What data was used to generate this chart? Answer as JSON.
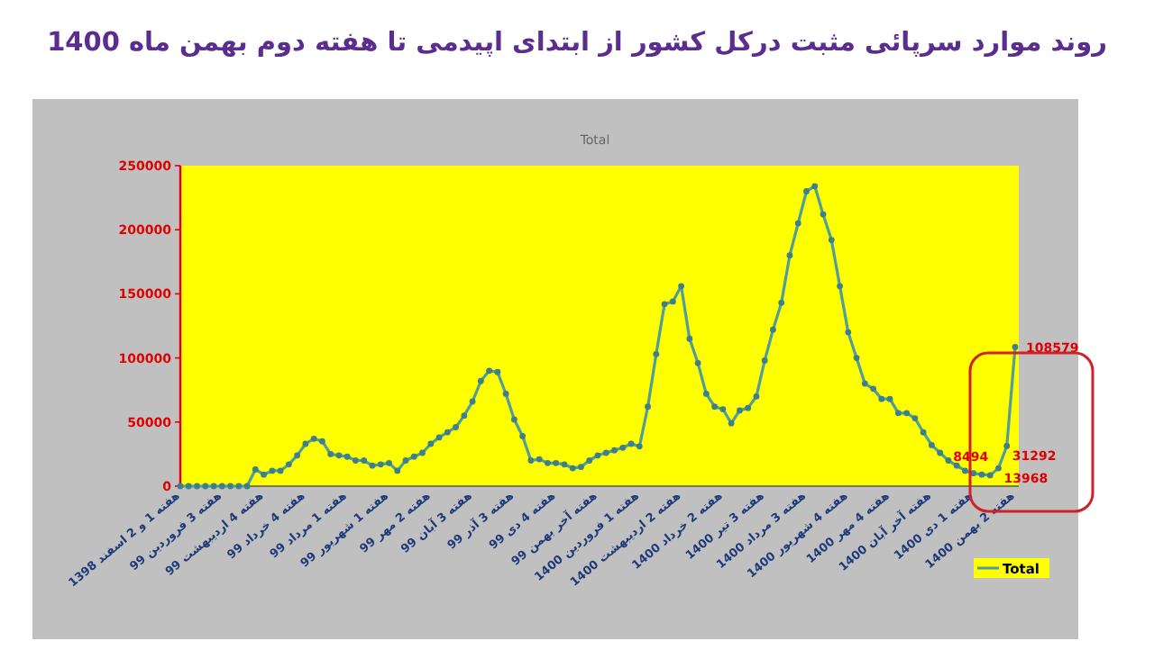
{
  "chart_data": {
    "type": "line",
    "title": "روند موارد سرپائی مثبت درکل کشور از ابتدای اپیدمی تا هفته دوم بهمن ماه 1400",
    "subtitle": "Total",
    "categories": [
      "هفته 1 و 2 اسفند 1398",
      null,
      null,
      null,
      null,
      "هفته 3 فروردین 99",
      null,
      null,
      null,
      null,
      "هفته 4 اردیبهشت 99",
      null,
      null,
      null,
      null,
      "هفته 4 خرداد 99",
      null,
      null,
      null,
      null,
      "هفته 1 مرداد 99",
      null,
      null,
      null,
      null,
      "هفته 1 شهریور 99",
      null,
      null,
      null,
      null,
      "هفته 2 مهر 99",
      null,
      null,
      null,
      null,
      "هفته 3 آبان 99",
      null,
      null,
      null,
      null,
      "هفته 3 آذر 99",
      null,
      null,
      null,
      null,
      "هفته 4 دی 99",
      null,
      null,
      null,
      null,
      "هفته آخر بهمن 99",
      null,
      null,
      null,
      null,
      "هفته 1 فروردین 1400",
      null,
      null,
      null,
      null,
      "هفته 2 اردیبهشت 1400",
      null,
      null,
      null,
      null,
      "هفته 2 خرداد 1400",
      null,
      null,
      null,
      null,
      "هفته 3 تیر 1400",
      null,
      null,
      null,
      null,
      "هفته 3 مرداد 1400",
      null,
      null,
      null,
      null,
      "هفته 4 شهریور 1400",
      null,
      null,
      null,
      null,
      "هفته 4 مهر 1400",
      null,
      null,
      null,
      null,
      "هفته آخر آبان 1400",
      null,
      null,
      null,
      null,
      "هفته 1 دی 1400",
      null,
      null,
      null,
      null,
      "هفته 2 بهمن 1400"
    ],
    "series": [
      {
        "name": "Total",
        "color": "#4f9e9a",
        "values": [
          0,
          0,
          0,
          0,
          0,
          0,
          0,
          0,
          0,
          13000,
          9000,
          12000,
          12000,
          17000,
          24000,
          33000,
          37000,
          35000,
          25000,
          24000,
          23000,
          20000,
          20000,
          16000,
          17000,
          18000,
          12000,
          20000,
          23000,
          26000,
          33000,
          38000,
          42000,
          46000,
          55000,
          66000,
          82000,
          90000,
          89000,
          72000,
          52000,
          39000,
          20000,
          21000,
          18000,
          18000,
          17000,
          14000,
          15000,
          20000,
          24000,
          26000,
          28000,
          30000,
          33000,
          31000,
          62000,
          103000,
          142000,
          144000,
          156000,
          115000,
          96000,
          72000,
          62000,
          60000,
          49000,
          59000,
          61000,
          70000,
          98000,
          122000,
          143000,
          180000,
          205000,
          230000,
          234000,
          212000,
          192000,
          156000,
          120000,
          100000,
          80000,
          76000,
          68000,
          68000,
          57000,
          57000,
          53000,
          42000,
          32000,
          26000,
          20000,
          16000,
          12000,
          10000,
          9000,
          8494,
          13968,
          31292,
          108579
        ],
        "value_labels": [
          null,
          null,
          null,
          null,
          null,
          null,
          null,
          null,
          null,
          null,
          null,
          null,
          null,
          null,
          null,
          null,
          null,
          null,
          null,
          null,
          null,
          null,
          null,
          null,
          null,
          null,
          null,
          null,
          null,
          null,
          null,
          null,
          null,
          null,
          null,
          null,
          null,
          null,
          null,
          null,
          null,
          null,
          null,
          null,
          null,
          null,
          null,
          null,
          null,
          null,
          null,
          null,
          null,
          null,
          null,
          null,
          null,
          null,
          null,
          null,
          null,
          null,
          null,
          null,
          null,
          null,
          null,
          null,
          null,
          null,
          null,
          null,
          null,
          null,
          null,
          null,
          null,
          null,
          null,
          null,
          null,
          null,
          null,
          null,
          null,
          null,
          null,
          null,
          null,
          null,
          null,
          null,
          null,
          null,
          null,
          null,
          null,
          "8494",
          "13968",
          "31292",
          "108579"
        ]
      }
    ],
    "ylim": [
      0,
      250000
    ],
    "yticks": [
      0,
      50000,
      100000,
      150000,
      200000,
      250000
    ],
    "marker": "circle",
    "legend": "bottom right",
    "grid": false
  }
}
